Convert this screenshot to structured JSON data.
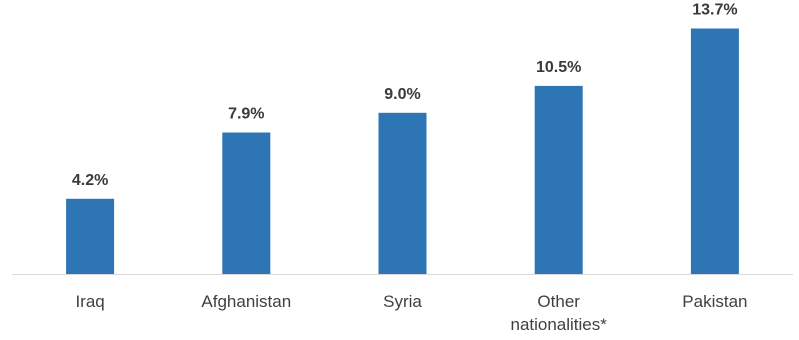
{
  "chart_data": {
    "type": "bar",
    "title": "",
    "xlabel": "",
    "ylabel": "",
    "categories": [
      [
        "Iraq"
      ],
      [
        "Afghanistan"
      ],
      [
        "Syria"
      ],
      [
        "Other",
        "nationalities*"
      ],
      [
        "Pakistan"
      ]
    ],
    "values": [
      4.2,
      7.9,
      9.0,
      10.5,
      13.7
    ],
    "data_labels": [
      "4.2%",
      "7.9%",
      "9.0%",
      "10.5%",
      "13.7%"
    ],
    "value_unit": "%",
    "ylim": [
      0,
      14.4
    ],
    "grid": false,
    "legend": "none",
    "bar_color": "#2e75b6",
    "axis_color": "#d9d9d9"
  }
}
